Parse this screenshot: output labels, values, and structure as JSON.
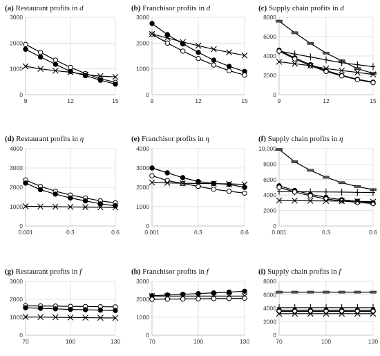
{
  "chart_data": [
    {
      "id": "a",
      "type": "line",
      "tag": "(a)",
      "title": "Restaurant profits in",
      "symbol": "d",
      "x": [
        9,
        10,
        11,
        12,
        13,
        14,
        15
      ],
      "xticks": [
        9,
        12,
        15
      ],
      "xlim": [
        9,
        15
      ],
      "ylim": [
        0,
        3000
      ],
      "yticks": [
        0,
        1000,
        2000,
        3000
      ],
      "series": [
        {
          "marker": "circle-open",
          "values": [
            1950,
            1640,
            1340,
            1060,
            820,
            620,
            480
          ]
        },
        {
          "marker": "circle-filled",
          "values": [
            1760,
            1460,
            1180,
            900,
            740,
            560,
            410
          ]
        },
        {
          "marker": "cross",
          "values": [
            1100,
            1000,
            930,
            870,
            780,
            720,
            690
          ]
        }
      ]
    },
    {
      "id": "b",
      "type": "line",
      "tag": "(b)",
      "title": "Franchisor profits in",
      "symbol": "d",
      "x": [
        9,
        10,
        11,
        12,
        13,
        14,
        15
      ],
      "xticks": [
        9,
        12,
        15
      ],
      "xlim": [
        9,
        15
      ],
      "ylim": [
        0,
        3000
      ],
      "yticks": [
        0,
        1000,
        2000,
        3000
      ],
      "series": [
        {
          "marker": "circle-filled",
          "values": [
            2760,
            2330,
            1970,
            1640,
            1340,
            1100,
            900
          ]
        },
        {
          "marker": "circle-open",
          "values": [
            2350,
            2000,
            1690,
            1400,
            1150,
            930,
            760
          ]
        },
        {
          "marker": "cross",
          "values": [
            2350,
            2200,
            2040,
            1900,
            1760,
            1640,
            1520
          ]
        }
      ]
    },
    {
      "id": "c",
      "type": "line",
      "tag": "(c)",
      "title": "Supply chain profits in",
      "symbol": "d",
      "x": [
        9,
        10,
        11,
        12,
        13,
        14,
        15
      ],
      "xticks": [
        9,
        12,
        15
      ],
      "xlim": [
        9,
        15
      ],
      "ylim": [
        0,
        8000
      ],
      "yticks": [
        0,
        2000,
        4000,
        6000,
        8000
      ],
      "series": [
        {
          "marker": "dash",
          "values": [
            7600,
            6400,
            5300,
            4300,
            3500,
            2700,
            2200
          ]
        },
        {
          "marker": "plus",
          "values": [
            4500,
            4200,
            3900,
            3600,
            3300,
            3100,
            2900
          ]
        },
        {
          "marker": "circle-filled",
          "values": [
            4600,
            3800,
            3100,
            2500,
            2000,
            1600,
            1300
          ]
        },
        {
          "marker": "circle-open",
          "values": [
            4500,
            3700,
            3000,
            2400,
            1950,
            1550,
            1250
          ]
        },
        {
          "marker": "cross",
          "values": [
            3400,
            3200,
            3000,
            2700,
            2500,
            2300,
            2100
          ]
        }
      ]
    },
    {
      "id": "d",
      "type": "line",
      "tag": "(d)",
      "title": "Restaurant profits in",
      "symbol": "η",
      "x": [
        0.001,
        0.1,
        0.2,
        0.3,
        0.4,
        0.5,
        0.6
      ],
      "xticks": [
        0.001,
        0.3,
        0.6
      ],
      "xticklabels": [
        "0.001",
        "0.3",
        "0.6"
      ],
      "xlim": [
        0.001,
        0.6
      ],
      "ylim": [
        0,
        4000
      ],
      "yticks": [
        0,
        1000,
        2000,
        3000,
        4000
      ],
      "series": [
        {
          "marker": "circle-open",
          "values": [
            2380,
            2050,
            1800,
            1600,
            1450,
            1300,
            1200
          ]
        },
        {
          "marker": "circle-filled",
          "values": [
            2220,
            1880,
            1650,
            1450,
            1300,
            1150,
            1050
          ]
        },
        {
          "marker": "cross",
          "values": [
            1020,
            1010,
            1000,
            990,
            980,
            970,
            960
          ]
        }
      ]
    },
    {
      "id": "e",
      "type": "line",
      "tag": "(e)",
      "title": "Franchisor profits in",
      "symbol": "η",
      "x": [
        0.001,
        0.1,
        0.2,
        0.3,
        0.4,
        0.5,
        0.6
      ],
      "xticks": [
        0.001,
        0.3,
        0.6
      ],
      "xticklabels": [
        "0.001",
        "0.3",
        "0.6"
      ],
      "xlim": [
        0.001,
        0.6
      ],
      "ylim": [
        0,
        4000
      ],
      "yticks": [
        0,
        1000,
        2000,
        3000,
        4000
      ],
      "series": [
        {
          "marker": "circle-filled",
          "values": [
            3000,
            2750,
            2500,
            2300,
            2200,
            2150,
            2000
          ]
        },
        {
          "marker": "circle-open",
          "values": [
            2600,
            2350,
            2200,
            2050,
            1900,
            1800,
            1700
          ]
        },
        {
          "marker": "cross",
          "values": [
            2250,
            2230,
            2210,
            2200,
            2190,
            2180,
            2150
          ]
        }
      ]
    },
    {
      "id": "f",
      "type": "line",
      "tag": "(f)",
      "title": "Supply chain profits in",
      "symbol": "η",
      "x": [
        0.001,
        0.1,
        0.2,
        0.3,
        0.4,
        0.5,
        0.6
      ],
      "xticks": [
        0.001,
        0.3,
        0.6
      ],
      "xticklabels": [
        "0.001",
        "0.3",
        "0.6"
      ],
      "xlim": [
        0.001,
        0.6
      ],
      "ylim": [
        0,
        10000
      ],
      "yticks": [
        0,
        2000,
        4000,
        6000,
        8000,
        10000
      ],
      "yticklabels": [
        "0",
        "2000",
        "4000",
        "6000",
        "8000",
        "10,000"
      ],
      "series": [
        {
          "marker": "dash",
          "values": [
            9900,
            8300,
            7200,
            6300,
            5600,
            5100,
            4700
          ]
        },
        {
          "marker": "plus",
          "values": [
            4500,
            4450,
            4420,
            4400,
            4380,
            4350,
            4330
          ]
        },
        {
          "marker": "circle-filled",
          "values": [
            5200,
            4600,
            4100,
            3700,
            3400,
            3200,
            3000
          ]
        },
        {
          "marker": "circle-open",
          "values": [
            5000,
            4400,
            3900,
            3500,
            3250,
            3050,
            2900
          ]
        },
        {
          "marker": "cross",
          "values": [
            3300,
            3280,
            3260,
            3240,
            3220,
            3200,
            3150
          ]
        }
      ]
    },
    {
      "id": "g",
      "type": "line",
      "tag": "(g)",
      "title": "Restaurant profits in",
      "symbol": "f",
      "x": [
        70,
        80,
        90,
        100,
        110,
        120,
        130
      ],
      "xticks": [
        70,
        100,
        130
      ],
      "xlim": [
        70,
        130
      ],
      "ylim": [
        0,
        3000
      ],
      "yticks": [
        0,
        1000,
        2000,
        3000
      ],
      "series": [
        {
          "marker": "circle-open",
          "values": [
            1640,
            1630,
            1620,
            1610,
            1600,
            1590,
            1580
          ]
        },
        {
          "marker": "circle-filled",
          "values": [
            1530,
            1500,
            1470,
            1440,
            1420,
            1400,
            1380
          ]
        },
        {
          "marker": "cross",
          "values": [
            1020,
            1010,
            1000,
            990,
            980,
            970,
            960
          ]
        }
      ]
    },
    {
      "id": "h",
      "type": "line",
      "tag": "(h)",
      "title": "Franchisor profits in",
      "symbol": "f",
      "x": [
        70,
        80,
        90,
        100,
        110,
        120,
        130
      ],
      "xticks": [
        70,
        100,
        130
      ],
      "xlim": [
        70,
        130
      ],
      "ylim": [
        0,
        3000
      ],
      "yticks": [
        0,
        1000,
        2000,
        3000
      ],
      "series": [
        {
          "marker": "circle-filled",
          "values": [
            2200,
            2240,
            2280,
            2320,
            2360,
            2400,
            2450
          ]
        },
        {
          "marker": "cross",
          "values": [
            2180,
            2180,
            2180,
            2180,
            2180,
            2180,
            2180
          ]
        },
        {
          "marker": "circle-open",
          "values": [
            2000,
            2010,
            2020,
            2030,
            2040,
            2050,
            2060
          ]
        }
      ]
    },
    {
      "id": "i",
      "type": "line",
      "tag": "(i)",
      "title": "Supply chain profits in",
      "symbol": "f",
      "x": [
        70,
        80,
        90,
        100,
        110,
        120,
        130
      ],
      "xticks": [
        70,
        100,
        130
      ],
      "xlim": [
        70,
        130
      ],
      "ylim": [
        0,
        8000
      ],
      "yticks": [
        0,
        2000,
        4000,
        6000,
        8000
      ],
      "series": [
        {
          "marker": "dash",
          "values": [
            6400,
            6400,
            6400,
            6400,
            6400,
            6400,
            6400
          ]
        },
        {
          "marker": "plus",
          "values": [
            4100,
            4100,
            4100,
            4100,
            4100,
            4100,
            4100
          ]
        },
        {
          "marker": "circle-filled",
          "values": [
            3700,
            3700,
            3700,
            3700,
            3700,
            3700,
            3700
          ]
        },
        {
          "marker": "circle-open",
          "values": [
            3550,
            3550,
            3550,
            3550,
            3550,
            3550,
            3550
          ]
        },
        {
          "marker": "cross",
          "values": [
            3200,
            3200,
            3200,
            3200,
            3200,
            3200,
            3200
          ]
        }
      ]
    }
  ]
}
